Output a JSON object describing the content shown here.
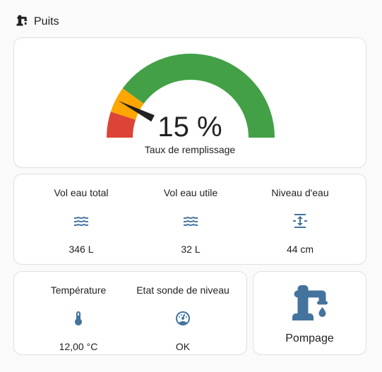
{
  "header": {
    "title": "Puits",
    "icon": "water-pump-icon"
  },
  "gauge": {
    "value": 15,
    "display": "15 %",
    "label": "Taux de remplissage",
    "min": 0,
    "max": 100,
    "segments": [
      {
        "from": 0,
        "to": 10,
        "color": "#db4437"
      },
      {
        "from": 10,
        "to": 20,
        "color": "#ffa600"
      },
      {
        "from": 20,
        "to": 100,
        "color": "#43a047"
      }
    ]
  },
  "sensors": [
    {
      "name": "Vol eau total",
      "icon": "waves-icon",
      "state": "346 L"
    },
    {
      "name": "Vol eau utile",
      "icon": "waves-icon",
      "state": "32 L"
    },
    {
      "name": "Niveau d'eau",
      "icon": "arrow-expand-vertical-icon",
      "state": "44 cm"
    }
  ],
  "status": [
    {
      "name": "Température",
      "icon": "thermometer-icon",
      "state": "12,00 °C"
    },
    {
      "name": "Etat sonde de niveau",
      "icon": "gauge-icon",
      "state": "OK"
    }
  ],
  "pump": {
    "label": "Pompage",
    "icon": "water-pump-icon"
  },
  "colors": {
    "icon": "#44739e",
    "card_border": "#e0e0e0",
    "background": "#fafafa"
  }
}
